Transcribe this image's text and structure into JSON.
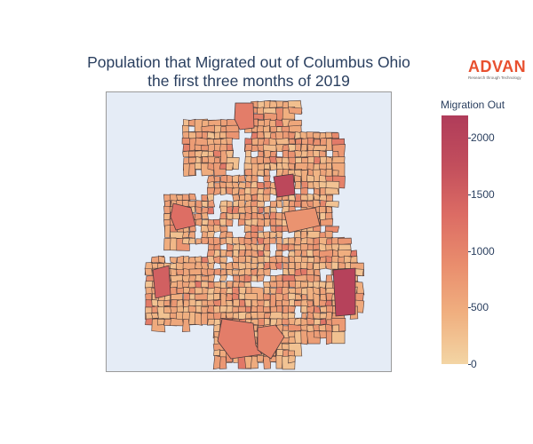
{
  "chart_data": {
    "type": "choropleth",
    "title_line1": "Population that Migrated out of Columbus Ohio",
    "title_line2": "the first three months of 2019",
    "colorbar": {
      "title": "Migration Out",
      "range": [
        0,
        2200
      ],
      "ticks": [
        0,
        500,
        1000,
        1500,
        2000
      ],
      "colors": [
        "#f3d5a4",
        "#f0b080",
        "#e98d6d",
        "#dc6c64",
        "#c24e5c",
        "#b03c5a"
      ]
    }
  },
  "logo": {
    "word": "ADVAN",
    "tagline": "Research through Technology"
  },
  "map": {
    "background": "#e5ecf6",
    "border": "#4a3a3a"
  }
}
